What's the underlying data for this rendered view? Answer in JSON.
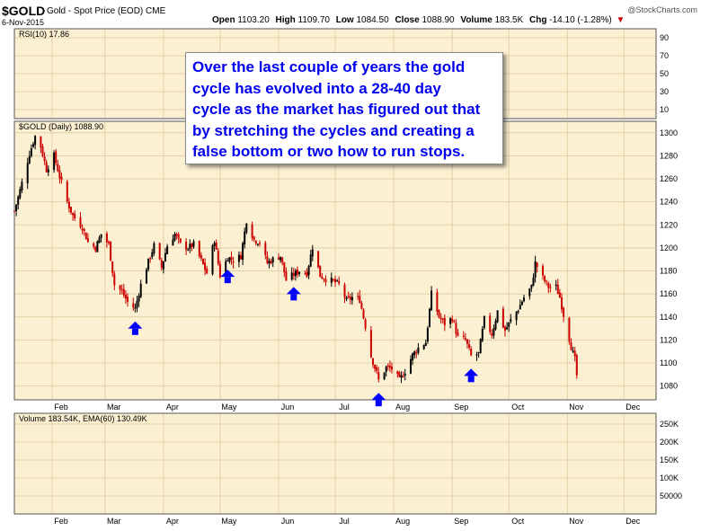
{
  "header": {
    "symbol": "$GOLD",
    "description": "Gold - Spot Price (EOD)",
    "exchange": "CME",
    "date": "6-Nov-2015",
    "open_label": "Open",
    "open_value": "1103.20",
    "high_label": "High",
    "high_value": "1109.70",
    "low_label": "Low",
    "low_value": "1084.50",
    "close_label": "Close",
    "close_value": "1088.90",
    "volume_label": "Volume",
    "volume_value": "183.5K",
    "chg_label": "Chg",
    "chg_value": "-14.10 (-1.28%)",
    "chg_arrow": "▼",
    "watermark": "@StockCharts.com"
  },
  "annotation": {
    "lines": [
      "Over the last couple of years the gold",
      "cycle has evolved into a 28-40 day",
      "cycle as the market has figured out that",
      "by stretching the cycles and creating a",
      "false bottom or two how to run stops."
    ]
  },
  "colors": {
    "panel_bg": "#fbf0d2",
    "up": "#000000",
    "down": "#cc0000",
    "marker": "#0000ff",
    "annotation_text": "#0000ee",
    "grid": "#e4cfa6"
  },
  "chart_data": [
    {
      "type": "line",
      "panel": "rsi",
      "label": "RSI(10) 17.86",
      "y_ticks": [
        90,
        70,
        50,
        30,
        10
      ],
      "ylim": [
        0,
        100
      ],
      "grid": true
    },
    {
      "type": "candlestick",
      "panel": "price",
      "label": "$GOLD (Daily) 1088.90",
      "y_ticks": [
        1300,
        1280,
        1260,
        1240,
        1220,
        1200,
        1180,
        1160,
        1140,
        1120,
        1100,
        1080
      ],
      "ylim": [
        1068,
        1310
      ],
      "x_ticks": [
        "Feb",
        "Mar",
        "Apr",
        "May",
        "Jun",
        "Jul",
        "Aug",
        "Sep",
        "Oct",
        "Nov",
        "Dec"
      ],
      "x_range": [
        "2015-01-12",
        "2015-12-18"
      ],
      "closes": [
        {
          "x": "2015-01-12",
          "y": 1232
        },
        {
          "x": "2015-01-15",
          "y": 1250
        },
        {
          "x": "2015-01-20",
          "y": 1282
        },
        {
          "x": "2015-01-23",
          "y": 1297
        },
        {
          "x": "2015-01-26",
          "y": 1288
        },
        {
          "x": "2015-01-29",
          "y": 1268
        },
        {
          "x": "2015-02-02",
          "y": 1280
        },
        {
          "x": "2015-02-05",
          "y": 1262
        },
        {
          "x": "2015-02-09",
          "y": 1240
        },
        {
          "x": "2015-02-12",
          "y": 1228
        },
        {
          "x": "2015-02-17",
          "y": 1218
        },
        {
          "x": "2015-02-20",
          "y": 1205
        },
        {
          "x": "2015-02-24",
          "y": 1200
        },
        {
          "x": "2015-02-27",
          "y": 1212
        },
        {
          "x": "2015-03-03",
          "y": 1203
        },
        {
          "x": "2015-03-06",
          "y": 1168
        },
        {
          "x": "2015-03-10",
          "y": 1162
        },
        {
          "x": "2015-03-13",
          "y": 1153
        },
        {
          "x": "2015-03-17",
          "y": 1147
        },
        {
          "x": "2015-03-20",
          "y": 1168
        },
        {
          "x": "2015-03-24",
          "y": 1188
        },
        {
          "x": "2015-03-27",
          "y": 1202
        },
        {
          "x": "2015-03-31",
          "y": 1183
        },
        {
          "x": "2015-04-03",
          "y": 1202
        },
        {
          "x": "2015-04-07",
          "y": 1212
        },
        {
          "x": "2015-04-10",
          "y": 1203
        },
        {
          "x": "2015-04-14",
          "y": 1200
        },
        {
          "x": "2015-04-17",
          "y": 1203
        },
        {
          "x": "2015-04-21",
          "y": 1189
        },
        {
          "x": "2015-04-24",
          "y": 1178
        },
        {
          "x": "2015-04-28",
          "y": 1207
        },
        {
          "x": "2015-05-01",
          "y": 1176
        },
        {
          "x": "2015-05-05",
          "y": 1192
        },
        {
          "x": "2015-05-08",
          "y": 1189
        },
        {
          "x": "2015-05-12",
          "y": 1193
        },
        {
          "x": "2015-05-15",
          "y": 1224
        },
        {
          "x": "2015-05-19",
          "y": 1207
        },
        {
          "x": "2015-05-22",
          "y": 1205
        },
        {
          "x": "2015-05-26",
          "y": 1187
        },
        {
          "x": "2015-05-29",
          "y": 1190
        },
        {
          "x": "2015-06-02",
          "y": 1193
        },
        {
          "x": "2015-06-05",
          "y": 1172
        },
        {
          "x": "2015-06-09",
          "y": 1177
        },
        {
          "x": "2015-06-12",
          "y": 1180
        },
        {
          "x": "2015-06-16",
          "y": 1178
        },
        {
          "x": "2015-06-19",
          "y": 1201
        },
        {
          "x": "2015-06-23",
          "y": 1176
        },
        {
          "x": "2015-06-26",
          "y": 1173
        },
        {
          "x": "2015-06-30",
          "y": 1171
        },
        {
          "x": "2015-07-03",
          "y": 1168
        },
        {
          "x": "2015-07-07",
          "y": 1154
        },
        {
          "x": "2015-07-10",
          "y": 1157
        },
        {
          "x": "2015-07-14",
          "y": 1155
        },
        {
          "x": "2015-07-17",
          "y": 1132
        },
        {
          "x": "2015-07-20",
          "y": 1106
        },
        {
          "x": "2015-07-23",
          "y": 1091
        },
        {
          "x": "2015-07-24",
          "y": 1085
        },
        {
          "x": "2015-07-28",
          "y": 1096
        },
        {
          "x": "2015-07-31",
          "y": 1095
        },
        {
          "x": "2015-08-04",
          "y": 1085
        },
        {
          "x": "2015-08-07",
          "y": 1093
        },
        {
          "x": "2015-08-11",
          "y": 1107
        },
        {
          "x": "2015-08-14",
          "y": 1113
        },
        {
          "x": "2015-08-18",
          "y": 1118
        },
        {
          "x": "2015-08-21",
          "y": 1160
        },
        {
          "x": "2015-08-25",
          "y": 1140
        },
        {
          "x": "2015-08-28",
          "y": 1134
        },
        {
          "x": "2015-09-01",
          "y": 1139
        },
        {
          "x": "2015-09-04",
          "y": 1122
        },
        {
          "x": "2015-09-08",
          "y": 1120
        },
        {
          "x": "2015-09-11",
          "y": 1106
        },
        {
          "x": "2015-09-15",
          "y": 1108
        },
        {
          "x": "2015-09-18",
          "y": 1138
        },
        {
          "x": "2015-09-22",
          "y": 1125
        },
        {
          "x": "2015-09-25",
          "y": 1145
        },
        {
          "x": "2015-09-29",
          "y": 1128
        },
        {
          "x": "2015-10-02",
          "y": 1137
        },
        {
          "x": "2015-10-06",
          "y": 1147
        },
        {
          "x": "2015-10-09",
          "y": 1157
        },
        {
          "x": "2015-10-13",
          "y": 1166
        },
        {
          "x": "2015-10-15",
          "y": 1187
        },
        {
          "x": "2015-10-19",
          "y": 1174
        },
        {
          "x": "2015-10-22",
          "y": 1166
        },
        {
          "x": "2015-10-26",
          "y": 1166
        },
        {
          "x": "2015-10-28",
          "y": 1157
        },
        {
          "x": "2015-10-30",
          "y": 1142
        },
        {
          "x": "2015-11-03",
          "y": 1114
        },
        {
          "x": "2015-11-05",
          "y": 1103
        },
        {
          "x": "2015-11-06",
          "y": 1089
        }
      ],
      "cycle_low_markers": [
        "2015-03-17",
        "2015-05-05",
        "2015-06-09",
        "2015-07-24",
        "2015-09-11"
      ],
      "grid": true
    },
    {
      "type": "bar",
      "panel": "volume",
      "label": "Volume 183.54K, EMA(60) 130.49K",
      "y_ticks": [
        "250K",
        "200K",
        "150K",
        "100K",
        "50000"
      ],
      "ylim": [
        0,
        280000
      ],
      "grid": true
    }
  ]
}
